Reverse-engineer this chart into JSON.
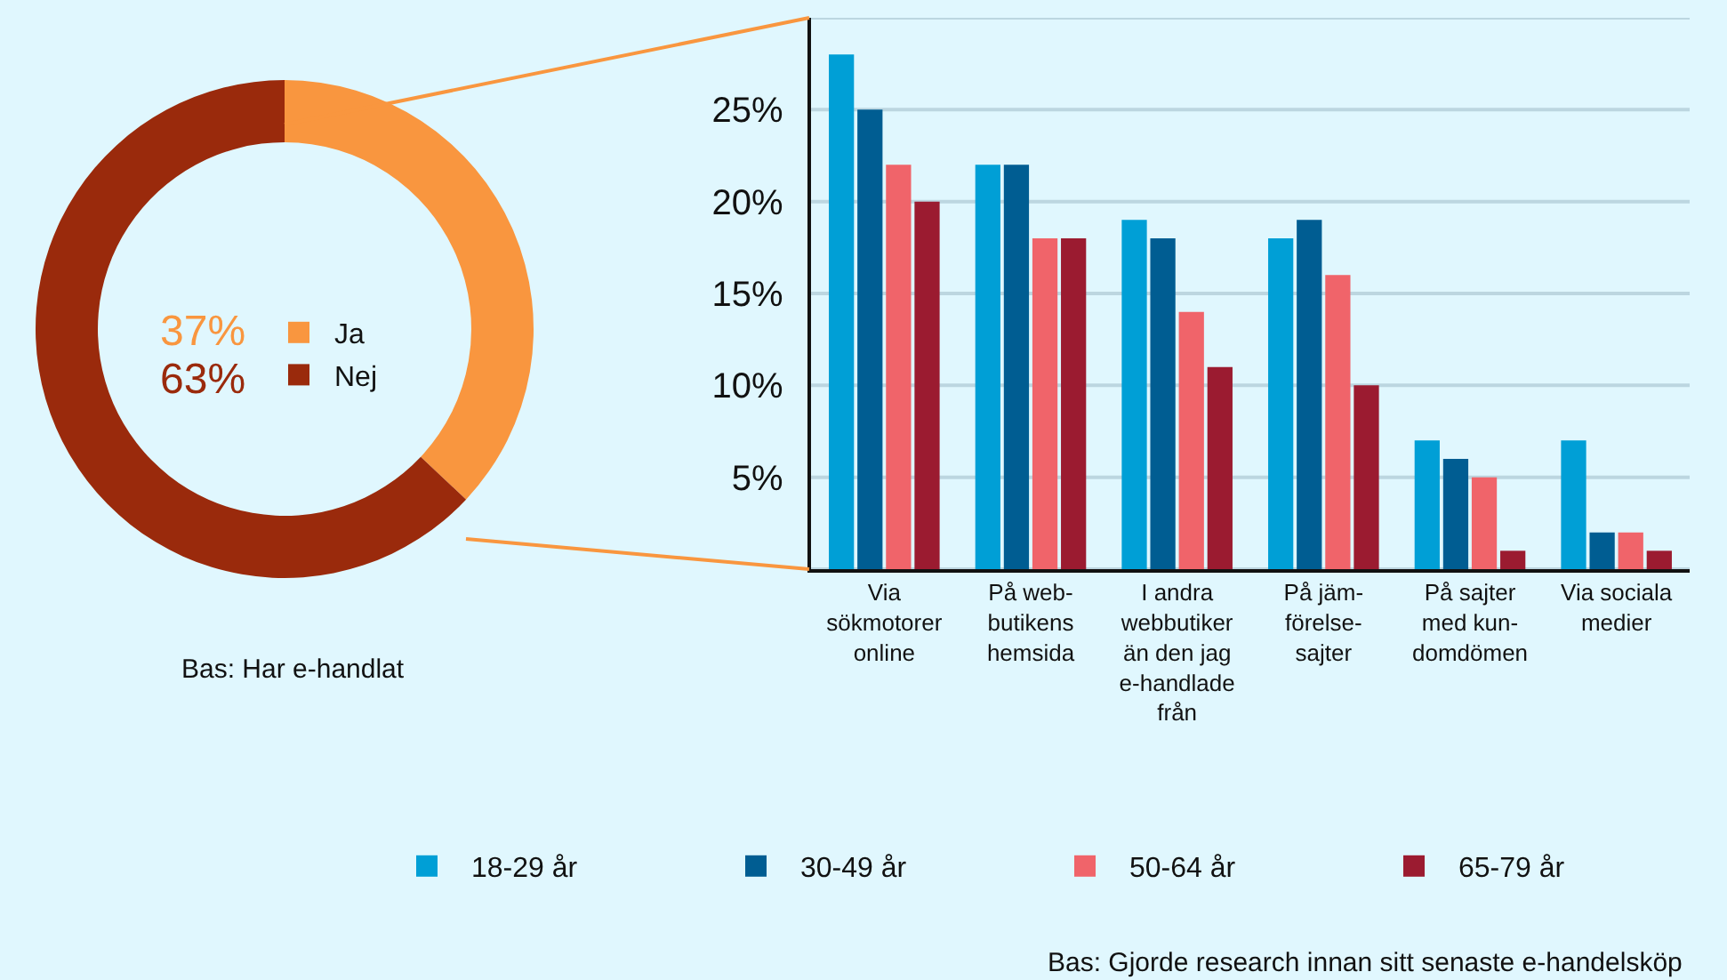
{
  "chart_data": [
    {
      "type": "donut",
      "categories": [
        "Ja",
        "Nej"
      ],
      "values": [
        37,
        63
      ],
      "colors": [
        "#f9963f",
        "#9a2a0c"
      ],
      "value_labels": [
        "37%",
        "63%"
      ],
      "legend": "center",
      "annotations": [
        "Bas: Har e-handlat"
      ]
    },
    {
      "type": "bar",
      "categories": [
        "Via\nsökmotorer\nonline",
        "På web-\nbutikens\nhemsida",
        "I andra\nwebbutiker\nän den jag\ne-handlade\nfrån",
        "På jäm-\nförelse-\nsajter",
        "På sajter\nmed kun-\ndomdömen",
        "Via sociala\nmedier"
      ],
      "series": [
        {
          "name": "18-29 år",
          "color": "#009fd6",
          "values": [
            28,
            22,
            19,
            18,
            7,
            7
          ]
        },
        {
          "name": "30-49 år",
          "color": "#005d92",
          "values": [
            25,
            22,
            18,
            19,
            6,
            2
          ]
        },
        {
          "name": "50-64 år",
          "color": "#f0646a",
          "values": [
            22,
            18,
            14,
            16,
            5,
            2
          ]
        },
        {
          "name": "65-79 år",
          "color": "#9b1b30",
          "values": [
            20,
            18,
            11,
            10,
            1,
            1
          ]
        }
      ],
      "ylim": [
        0,
        30
      ],
      "yticks": [
        {
          "value": 0,
          "label": null
        },
        {
          "value": 5,
          "label": "5%"
        },
        {
          "value": 10,
          "label": "10%"
        },
        {
          "value": 15,
          "label": "15%"
        },
        {
          "value": 20,
          "label": "20%"
        },
        {
          "value": 25,
          "label": "25%"
        },
        {
          "value": 30,
          "label": null
        }
      ],
      "grid": "y",
      "legend": "bottom",
      "annotations": [
        "Bas: Gjorde research innan sitt senaste e-handelsköp"
      ]
    }
  ]
}
